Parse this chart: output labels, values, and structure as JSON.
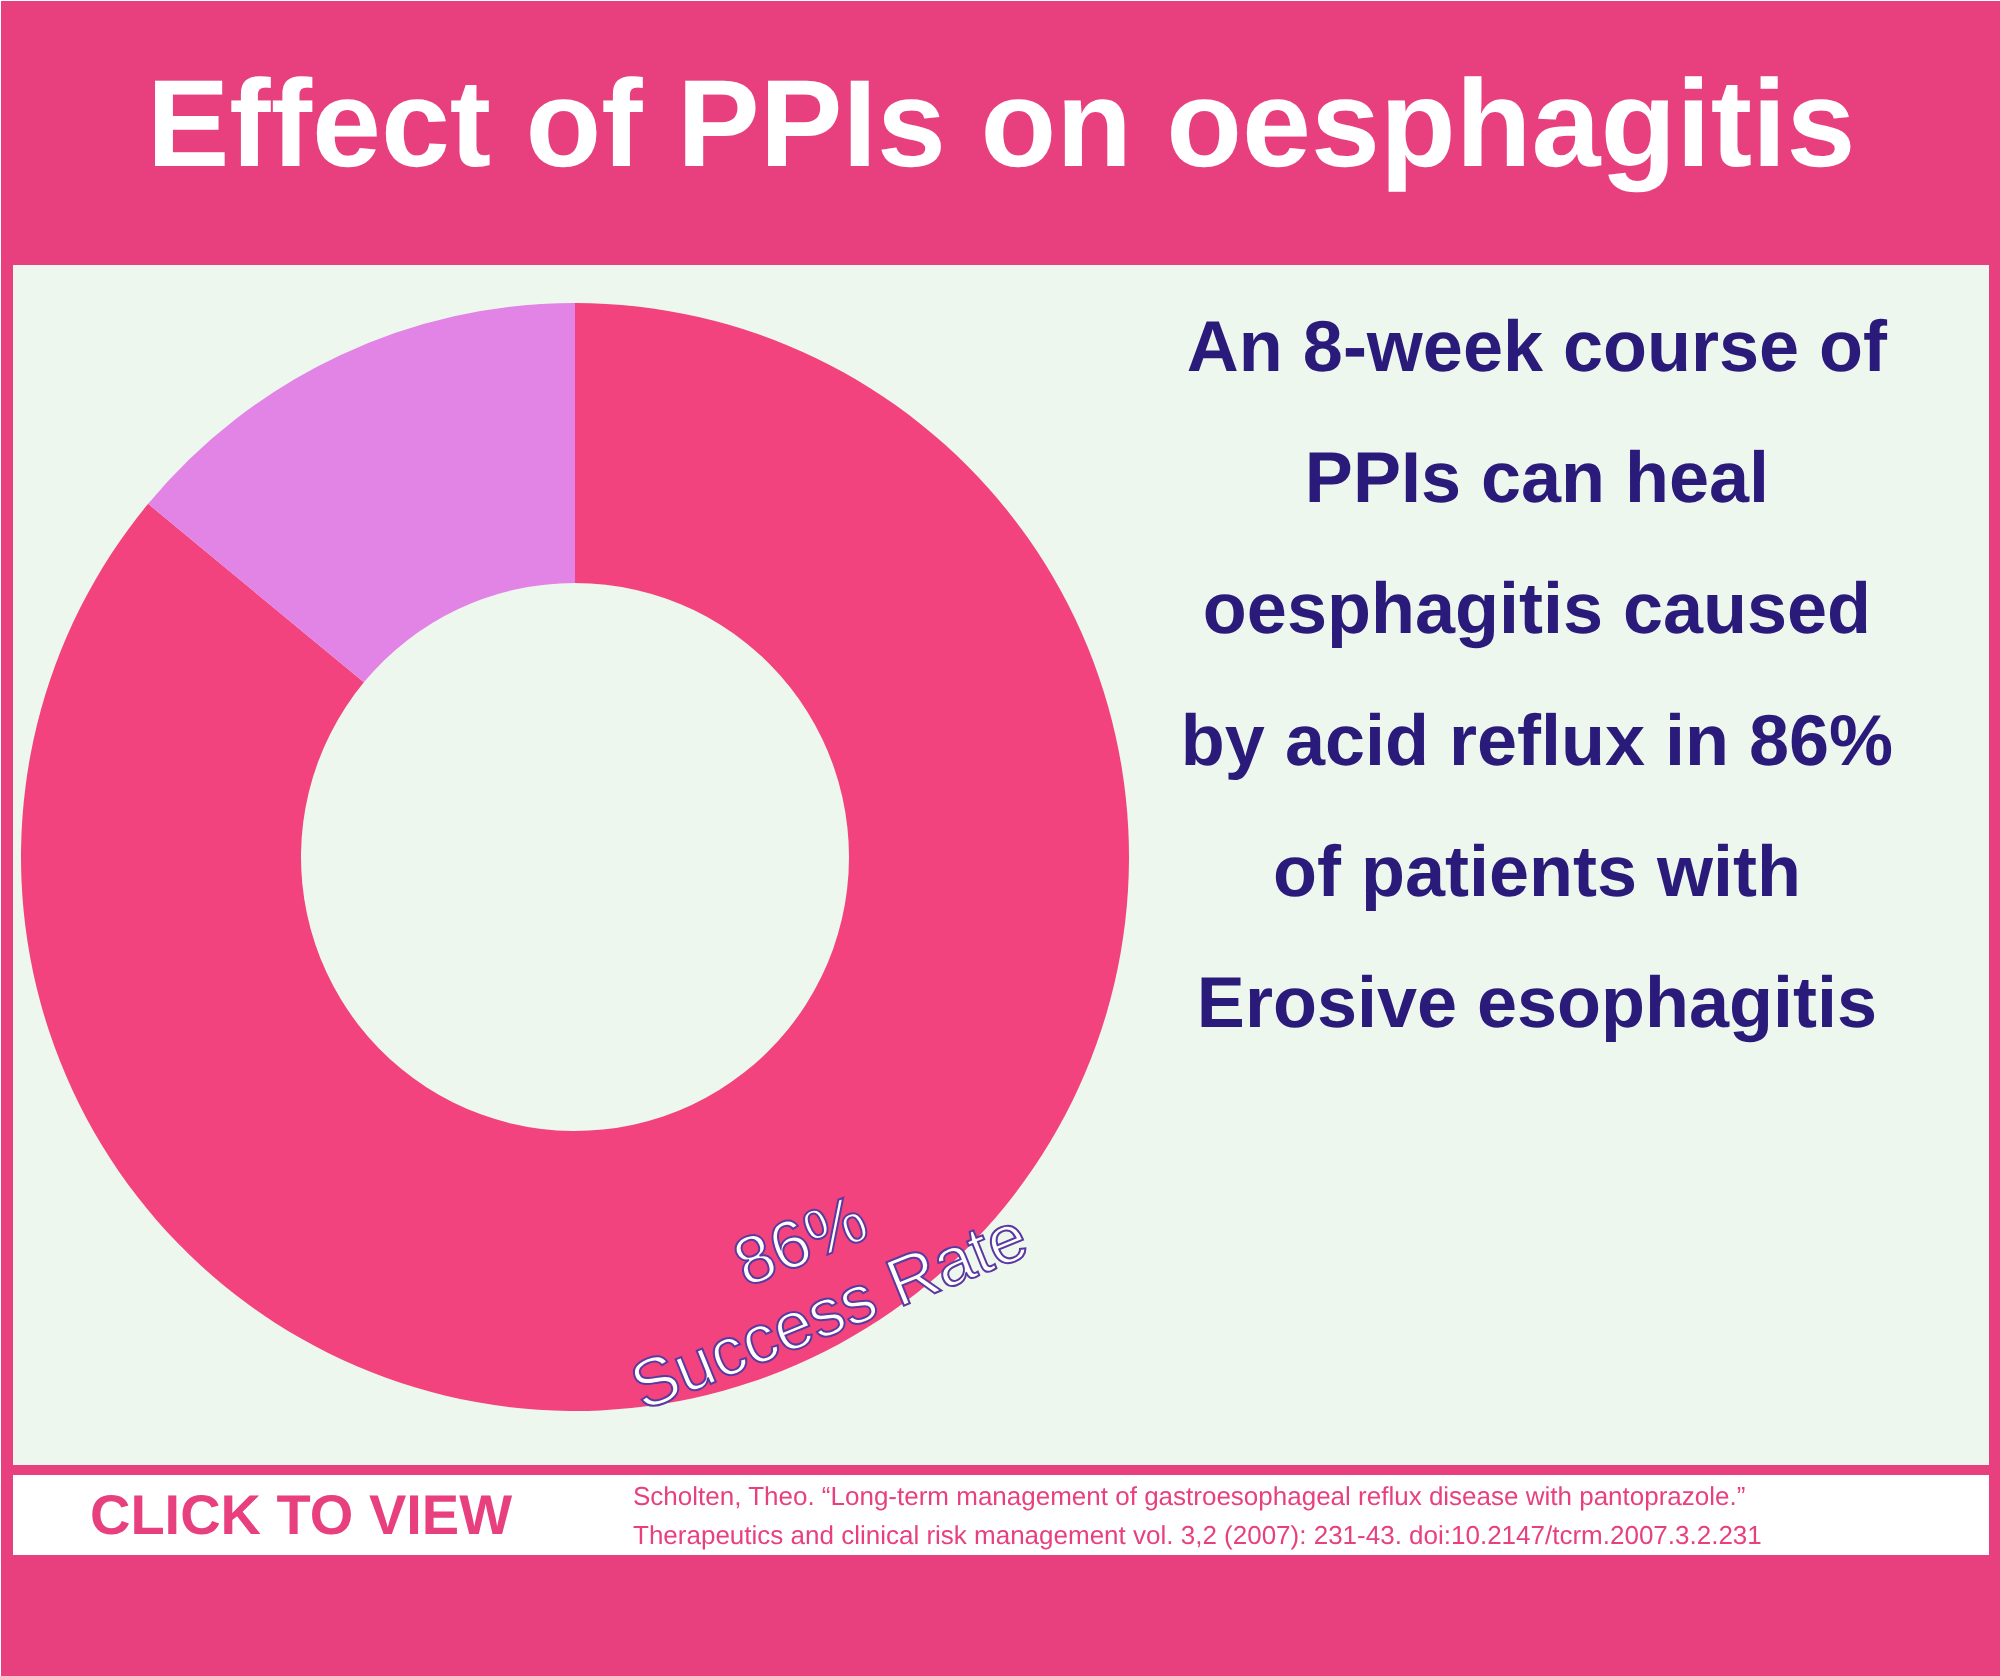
{
  "chart_data": {
    "type": "donut",
    "title": "Effect of PPIs on oesphagitis",
    "categories": [
      "Success Rate",
      null
    ],
    "values": [
      86,
      14
    ],
    "colors": [
      "#f2437e",
      "#e283e6"
    ],
    "value_labels": [
      "86%",
      null
    ],
    "annotations": [
      "An 8-week course of\nPPIs can heal\noesphagitis caused\nby acid reflux in 86%\nof patients with\nErosive esophagitis",
      "CLICK TO VIEW",
      "Scholten, Theo. “Long-term management of gastroesophageal reflux disease with pantoprazole.”\nTherapeutics and clinical risk management vol. 3,2 (2007): 231-43. doi:10.2147/tcrm.2007.3.2.231"
    ]
  }
}
